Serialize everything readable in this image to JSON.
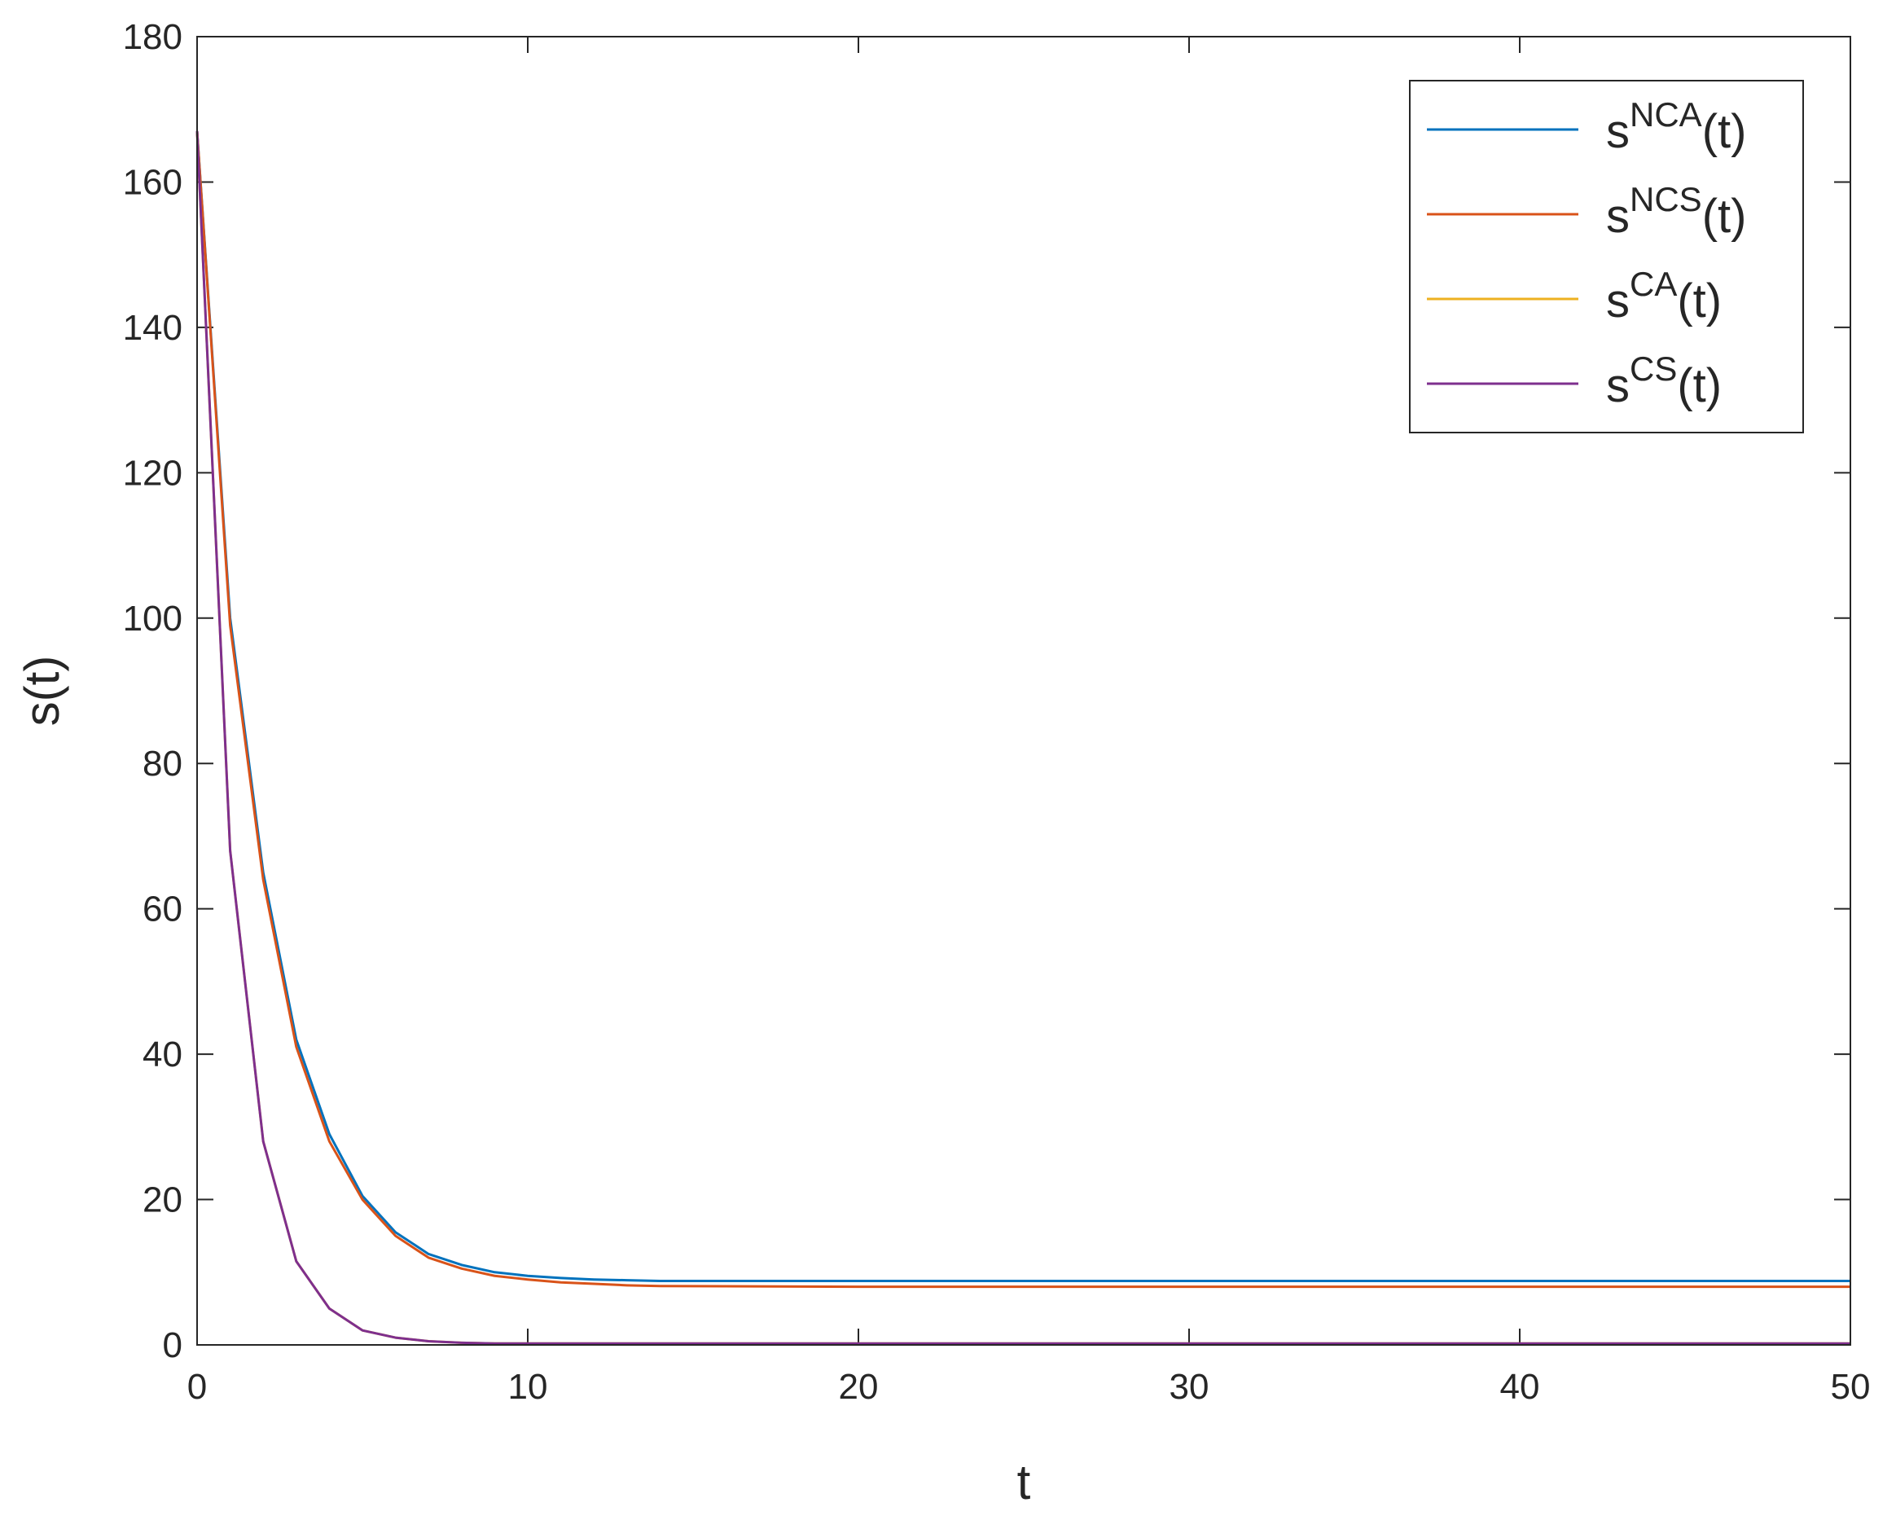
{
  "chart_data": {
    "type": "line",
    "xlabel": "t",
    "ylabel": "s(t)",
    "x": [
      0,
      1,
      2,
      3,
      4,
      5,
      6,
      7,
      8,
      9,
      10,
      11,
      12,
      13,
      14,
      20,
      30,
      40,
      50
    ],
    "series": [
      {
        "name": "s",
        "superscript": "NCA",
        "name_end": "(t)",
        "color": "#0072bd",
        "values": [
          167,
          100,
          65,
          42,
          29,
          20.5,
          15.5,
          12.5,
          11,
          10,
          9.5,
          9.2,
          9,
          8.9,
          8.8,
          8.8,
          8.8,
          8.8,
          8.8
        ]
      },
      {
        "name": "s",
        "superscript": "NCS",
        "name_end": "(t)",
        "color": "#d95319",
        "values": [
          167,
          99,
          64,
          41,
          28,
          20,
          15,
          12,
          10.5,
          9.5,
          9,
          8.6,
          8.4,
          8.2,
          8.1,
          8,
          8,
          8,
          8
        ]
      },
      {
        "name": "s",
        "superscript": "CA",
        "name_end": "(t)",
        "color": "#edb120",
        "values": [
          167,
          68,
          28,
          11.5,
          5,
          2,
          1,
          0.5,
          0.3,
          0.2,
          0.2,
          0.2,
          0.2,
          0.2,
          0.2,
          0.2,
          0.2,
          0.2,
          0.2
        ]
      },
      {
        "name": "s",
        "superscript": "CS",
        "name_end": "(t)",
        "color": "#7e2f8e",
        "values": [
          167,
          68,
          28,
          11.5,
          5,
          2,
          1,
          0.5,
          0.3,
          0.2,
          0.2,
          0.2,
          0.2,
          0.2,
          0.2,
          0.2,
          0.2,
          0.2,
          0.2
        ]
      }
    ],
    "xlim": [
      0,
      50
    ],
    "xticks": [
      0,
      10,
      20,
      30,
      40,
      50
    ],
    "ylim": [
      0,
      180
    ],
    "yticks": [
      0,
      20,
      40,
      60,
      80,
      100,
      120,
      140,
      160,
      180
    ],
    "grid": false,
    "legend": "upper-right"
  }
}
